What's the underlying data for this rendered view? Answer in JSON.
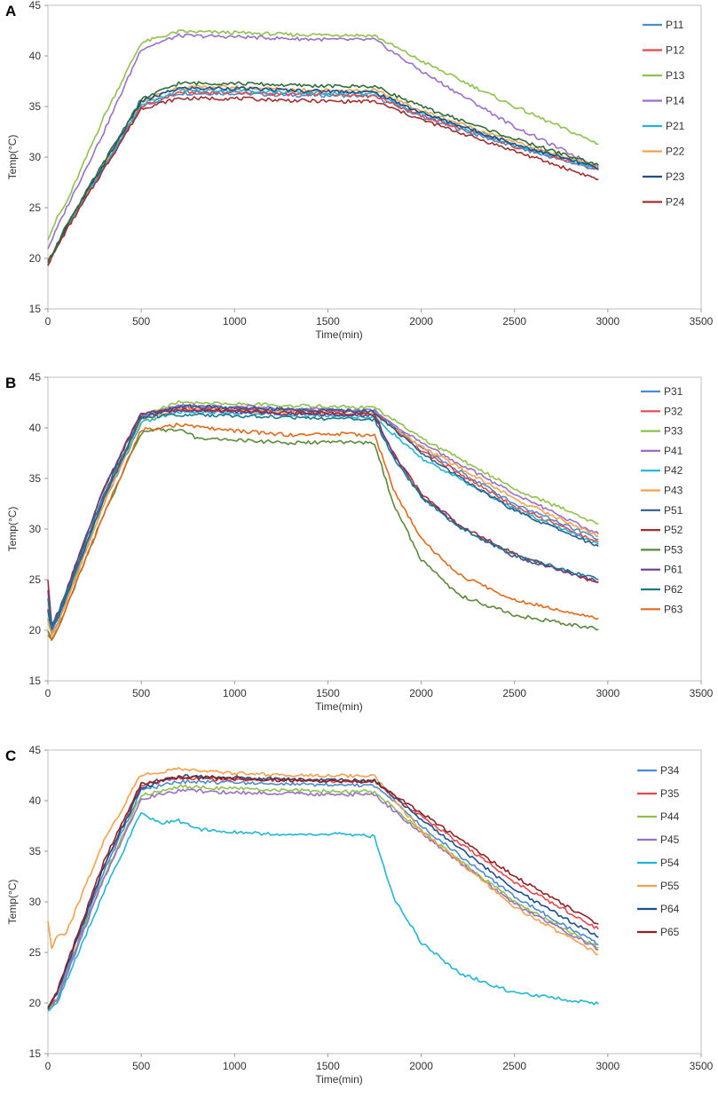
{
  "chart_data": [
    {
      "panel": "A",
      "type": "line",
      "title": "",
      "xlabel": "Time(min)",
      "ylabel": "Temp(°C)",
      "xlim": [
        0,
        3500
      ],
      "ylim": [
        15,
        45
      ],
      "xticks": [
        "0",
        "500",
        "1000",
        "1500",
        "2000",
        "2500",
        "3000",
        "3500"
      ],
      "yticks": [
        "15",
        "20",
        "25",
        "30",
        "35",
        "40",
        "45"
      ],
      "legend_position": "right",
      "series": [
        {
          "name": "P11",
          "color": "#4a8ccf",
          "x": [
            0,
            100,
            300,
            500,
            700,
            1000,
            1300,
            1550,
            1750,
            2000,
            2500,
            2950
          ],
          "y": [
            19.5,
            23,
            29,
            35,
            36.3,
            36.3,
            36.1,
            36.1,
            36,
            34,
            31,
            28.7
          ]
        },
        {
          "name": "P12",
          "color": "#e8474a",
          "x": [
            0,
            100,
            300,
            500,
            700,
            1000,
            1300,
            1550,
            1750,
            2000,
            2500,
            2950
          ],
          "y": [
            19.5,
            23,
            29,
            35,
            36.4,
            36.4,
            36.2,
            36.2,
            36.1,
            34.1,
            31.1,
            28.8
          ]
        },
        {
          "name": "P13",
          "color": "#8dc24c",
          "x": [
            0,
            50,
            100,
            300,
            500,
            700,
            1000,
            1300,
            1550,
            1750,
            2000,
            2500,
            2950
          ],
          "y": [
            22,
            24,
            25.5,
            34,
            41.3,
            42.4,
            42.3,
            42.1,
            42.1,
            42,
            39.5,
            35,
            31.3
          ]
        },
        {
          "name": "P14",
          "color": "#9b6fc7",
          "x": [
            0,
            50,
            100,
            300,
            500,
            700,
            1000,
            1300,
            1550,
            1750,
            2000,
            2500,
            2950
          ],
          "y": [
            21,
            23,
            25,
            32.5,
            40.7,
            42,
            41.9,
            41.7,
            41.6,
            41.6,
            38.5,
            33,
            29
          ]
        },
        {
          "name": "P21",
          "color": "#1fb6d6",
          "x": [
            0,
            100,
            300,
            500,
            700,
            1000,
            1300,
            1550,
            1750,
            2000,
            2500,
            2950
          ],
          "y": [
            19.5,
            23,
            29,
            35.2,
            36.6,
            36.6,
            36.4,
            36.3,
            36.3,
            34.3,
            31.2,
            28.9
          ]
        },
        {
          "name": "P22",
          "color": "#f5a04a",
          "x": [
            0,
            100,
            300,
            500,
            700,
            1000,
            1300,
            1550,
            1750,
            2000,
            2500,
            2950
          ],
          "y": [
            19.6,
            23.2,
            29.3,
            35.5,
            36.9,
            36.9,
            36.7,
            36.6,
            36.6,
            34.6,
            31.5,
            29.1
          ]
        },
        {
          "name": "P23",
          "color": "#1f4e8c",
          "x": [
            0,
            100,
            300,
            500,
            700,
            1000,
            1300,
            1550,
            1750,
            2000,
            2500,
            2950
          ],
          "y": [
            19.6,
            23.2,
            29.3,
            35.5,
            36.8,
            36.8,
            36.6,
            36.5,
            36.4,
            34.4,
            31.3,
            28.9
          ]
        },
        {
          "name": "P24",
          "color": "#a03030",
          "x": [
            0,
            100,
            300,
            500,
            700,
            1000,
            1300,
            1550,
            1750,
            2000,
            2500,
            2950
          ],
          "y": [
            19.4,
            22.8,
            28.8,
            34.8,
            35.8,
            35.8,
            35.6,
            35.5,
            35.5,
            33.7,
            30.6,
            27.8
          ]
        },
        {
          "name": "",
          "color": "#2f6e3a",
          "x": [
            0,
            100,
            300,
            500,
            700,
            1000,
            1300,
            1550,
            1750,
            2000,
            2500,
            2950
          ],
          "y": [
            19.6,
            23.3,
            29.5,
            35.7,
            37.3,
            37.3,
            37.1,
            37,
            37,
            35,
            31.8,
            29.2
          ]
        }
      ]
    },
    {
      "panel": "B",
      "type": "line",
      "title": "",
      "xlabel": "Time(min)",
      "ylabel": "Temp(°C)",
      "xlim": [
        0,
        3500
      ],
      "ylim": [
        15,
        45
      ],
      "xticks": [
        "0",
        "500",
        "1000",
        "1500",
        "2000",
        "2500",
        "3000",
        "3500"
      ],
      "yticks": [
        "15",
        "20",
        "25",
        "30",
        "35",
        "40",
        "45"
      ],
      "legend_position": "right",
      "series": [
        {
          "name": "P31",
          "color": "#4a8ccf",
          "x": [
            0,
            20,
            60,
            300,
            500,
            700,
            1000,
            1300,
            1550,
            1750,
            2000,
            2500,
            2950
          ],
          "y": [
            22,
            20,
            21.5,
            33,
            41.2,
            42.1,
            42,
            41.8,
            41.7,
            41.6,
            38,
            32.5,
            29
          ]
        },
        {
          "name": "P32",
          "color": "#e8474a",
          "x": [
            0,
            20,
            60,
            300,
            500,
            700,
            1000,
            1300,
            1550,
            1750,
            2000,
            2500,
            2950
          ],
          "y": [
            22,
            20,
            21.5,
            33,
            41.1,
            42,
            41.9,
            41.7,
            41.6,
            41.5,
            37.8,
            32.2,
            28.7
          ]
        },
        {
          "name": "P33",
          "color": "#8dc24c",
          "x": [
            0,
            20,
            60,
            300,
            500,
            700,
            1000,
            1300,
            1550,
            1750,
            2000,
            2500,
            2950
          ],
          "y": [
            21,
            19.5,
            21,
            33,
            41.2,
            42.5,
            42.4,
            42.2,
            42.1,
            42,
            39,
            34,
            30.5
          ]
        },
        {
          "name": "P41",
          "color": "#9b6fc7",
          "x": [
            0,
            20,
            60,
            300,
            500,
            700,
            1000,
            1300,
            1550,
            1750,
            2000,
            2500,
            2950
          ],
          "y": [
            22,
            20,
            21.5,
            33,
            41,
            42.2,
            42.1,
            41.9,
            41.8,
            41.7,
            38.5,
            33.5,
            29.5
          ]
        },
        {
          "name": "P42",
          "color": "#1fb6d6",
          "x": [
            0,
            20,
            60,
            300,
            500,
            700,
            1000,
            1300,
            1550,
            1750,
            2000,
            2500,
            2950
          ],
          "y": [
            21,
            19.5,
            21,
            32.5,
            40.5,
            41.6,
            41.5,
            41.3,
            41.2,
            41,
            37,
            32,
            28.5
          ]
        },
        {
          "name": "P43",
          "color": "#f5a04a",
          "x": [
            0,
            20,
            60,
            300,
            500,
            700,
            1000,
            1300,
            1550,
            1750,
            2000,
            2500,
            2950
          ],
          "y": [
            21,
            19.5,
            21,
            32.5,
            40.8,
            41.8,
            41.7,
            41.5,
            41.4,
            41.3,
            38.2,
            33,
            29.3
          ]
        },
        {
          "name": "P51",
          "color": "#2e5c8a",
          "x": [
            0,
            20,
            60,
            300,
            500,
            700,
            1000,
            1300,
            1550,
            1750,
            2000,
            2500,
            2950
          ],
          "y": [
            22,
            20,
            21.5,
            33,
            41,
            42.1,
            42,
            41.8,
            41.7,
            41.6,
            37.5,
            31.8,
            28.3
          ]
        },
        {
          "name": "P52",
          "color": "#a03030",
          "x": [
            0,
            20,
            60,
            300,
            500,
            700,
            1000,
            1300,
            1550,
            1750,
            1850,
            2000,
            2200,
            2500,
            2950
          ],
          "y": [
            25,
            20.5,
            22,
            34,
            41.5,
            41.8,
            41.7,
            41.5,
            41.4,
            41.3,
            37.5,
            33.5,
            30.5,
            27.5,
            24.7
          ]
        },
        {
          "name": "P53",
          "color": "#5a8a3a",
          "x": [
            0,
            20,
            60,
            300,
            500,
            550,
            700,
            800,
            1000,
            1300,
            1550,
            1750,
            1850,
            2000,
            2200,
            2500,
            2950
          ],
          "y": [
            20,
            19,
            20.5,
            31.5,
            39.5,
            39.8,
            39.8,
            39,
            38.8,
            38.5,
            38.6,
            38.5,
            32.5,
            27,
            23.5,
            21.5,
            20.1
          ]
        },
        {
          "name": "P61",
          "color": "#6a3b8c",
          "x": [
            0,
            20,
            60,
            300,
            500,
            700,
            1000,
            1300,
            1550,
            1750,
            1850,
            2000,
            2200,
            2500,
            2950
          ],
          "y": [
            24,
            20.5,
            22,
            34,
            41.4,
            41.7,
            41.6,
            41.4,
            41.3,
            41.2,
            37.3,
            33.3,
            30.3,
            27.3,
            24.8
          ]
        },
        {
          "name": "P62",
          "color": "#1a7a8c",
          "x": [
            0,
            20,
            60,
            300,
            500,
            700,
            1000,
            1300,
            1550,
            1750,
            1850,
            2000,
            2200,
            2500,
            2950
          ],
          "y": [
            23,
            20.2,
            21.8,
            33.5,
            41,
            41.3,
            41.2,
            41,
            40.9,
            40.8,
            37.1,
            33.2,
            30.2,
            27.4,
            25
          ]
        },
        {
          "name": "P63",
          "color": "#e06a1a",
          "x": [
            0,
            20,
            60,
            300,
            500,
            700,
            1000,
            1300,
            1550,
            1750,
            1850,
            2000,
            2200,
            2500,
            2950
          ],
          "y": [
            19.5,
            19,
            20.5,
            31.5,
            39.8,
            40.3,
            39.7,
            39.3,
            39.4,
            39.3,
            34,
            29,
            25.5,
            23,
            21.2
          ]
        }
      ]
    },
    {
      "panel": "C",
      "type": "line",
      "title": "",
      "xlabel": "Time(min)",
      "ylabel": "Temp(°C)",
      "xlim": [
        0,
        3500
      ],
      "ylim": [
        15,
        45
      ],
      "xticks": [
        "0",
        "500",
        "1000",
        "1500",
        "2000",
        "2500",
        "3000",
        "3500"
      ],
      "yticks": [
        "15",
        "20",
        "25",
        "30",
        "35",
        "40",
        "45"
      ],
      "legend_position": "right",
      "series": [
        {
          "name": "P34",
          "color": "#4a8ccf",
          "x": [
            0,
            50,
            300,
            500,
            700,
            1000,
            1300,
            1550,
            1750,
            2000,
            2500,
            2950
          ],
          "y": [
            19.5,
            20.5,
            33,
            41,
            41.9,
            41.8,
            41.6,
            41.5,
            41.5,
            37.5,
            30.5,
            25.8
          ]
        },
        {
          "name": "P35",
          "color": "#e8474a",
          "x": [
            0,
            50,
            300,
            500,
            700,
            1000,
            1300,
            1550,
            1750,
            2000,
            2500,
            2950
          ],
          "y": [
            19.5,
            21,
            33.5,
            41.5,
            42.2,
            42.1,
            42,
            41.9,
            41.9,
            38.5,
            32,
            27.3
          ]
        },
        {
          "name": "P44",
          "color": "#8dc24c",
          "x": [
            0,
            50,
            300,
            500,
            700,
            1000,
            1300,
            1550,
            1750,
            2000,
            2500,
            2950
          ],
          "y": [
            19.3,
            20.3,
            32.5,
            40.5,
            41.4,
            41.2,
            41,
            40.9,
            40.9,
            37,
            30,
            25.5
          ]
        },
        {
          "name": "P45",
          "color": "#9b6fc7",
          "x": [
            0,
            50,
            300,
            500,
            700,
            1000,
            1300,
            1550,
            1750,
            2000,
            2500,
            2950
          ],
          "y": [
            19.3,
            20.3,
            32.3,
            40.2,
            41,
            40.8,
            40.7,
            40.6,
            40.6,
            36.8,
            29.8,
            25.3
          ]
        },
        {
          "name": "P54",
          "color": "#1fb6d6",
          "x": [
            0,
            50,
            300,
            500,
            550,
            600,
            700,
            800,
            1000,
            1300,
            1550,
            1750,
            1850,
            2000,
            2200,
            2500,
            2950
          ],
          "y": [
            19.3,
            20,
            31,
            38.8,
            38.2,
            37.8,
            38,
            37.2,
            36.9,
            36.6,
            36.7,
            36.5,
            30.5,
            26,
            23,
            21,
            19.9
          ]
        },
        {
          "name": "P55",
          "color": "#f5a04a",
          "x": [
            0,
            20,
            50,
            100,
            300,
            500,
            700,
            1000,
            1300,
            1550,
            1750,
            2000,
            2500,
            2950
          ],
          "y": [
            28,
            25.5,
            26.5,
            27,
            36,
            42.6,
            43.1,
            42.7,
            42.5,
            42.5,
            42.4,
            37,
            29.5,
            24.8
          ]
        },
        {
          "name": "P64",
          "color": "#1f4e8c",
          "x": [
            0,
            50,
            300,
            500,
            700,
            1000,
            1300,
            1550,
            1750,
            2000,
            2500,
            2950
          ],
          "y": [
            19.5,
            21,
            33.5,
            41.3,
            42.4,
            42.3,
            42.1,
            42,
            42,
            38.2,
            31.2,
            26.5
          ]
        },
        {
          "name": "P65",
          "color": "#8b2323",
          "x": [
            0,
            50,
            300,
            500,
            700,
            1000,
            1300,
            1550,
            1750,
            2000,
            2500,
            2950
          ],
          "y": [
            19.5,
            21.2,
            34,
            41.7,
            42.3,
            42.2,
            42,
            41.9,
            41.9,
            38.8,
            32.5,
            27.8
          ]
        }
      ]
    }
  ]
}
